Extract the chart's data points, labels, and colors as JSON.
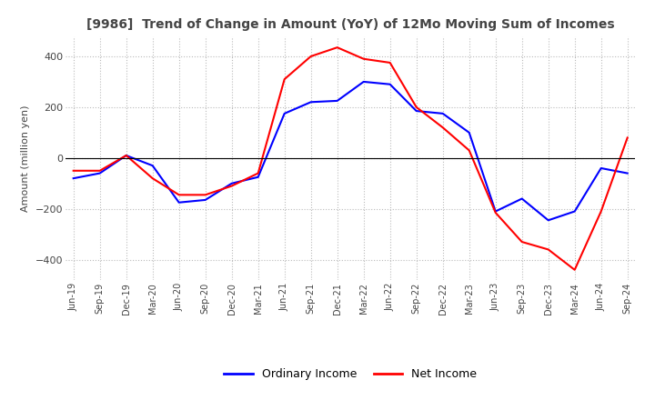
{
  "title": "[9986]  Trend of Change in Amount (YoY) of 12Mo Moving Sum of Incomes",
  "ylabel": "Amount (million yen)",
  "x_labels": [
    "Jun-19",
    "Sep-19",
    "Dec-19",
    "Mar-20",
    "Jun-20",
    "Sep-20",
    "Dec-20",
    "Mar-21",
    "Jun-21",
    "Sep-21",
    "Dec-21",
    "Mar-22",
    "Jun-22",
    "Sep-22",
    "Dec-22",
    "Mar-23",
    "Jun-23",
    "Sep-23",
    "Dec-23",
    "Mar-24",
    "Jun-24",
    "Sep-24"
  ],
  "ordinary_income": [
    -80,
    -60,
    10,
    -30,
    -175,
    -165,
    -100,
    -75,
    175,
    220,
    225,
    300,
    290,
    185,
    175,
    100,
    -210,
    -160,
    -245,
    -210,
    -40,
    -60
  ],
  "net_income": [
    -50,
    -50,
    10,
    -80,
    -145,
    -145,
    -110,
    -60,
    310,
    400,
    435,
    390,
    375,
    200,
    120,
    30,
    -215,
    -330,
    -360,
    -440,
    -210,
    80
  ],
  "ylim": [
    -480,
    480
  ],
  "yticks": [
    -400,
    -200,
    0,
    200,
    400
  ],
  "ordinary_color": "#0000FF",
  "net_color": "#FF0000",
  "background_color": "#FFFFFF",
  "grid_color": "#BBBBBB",
  "title_color": "#444444",
  "legend_ordinary": "Ordinary Income",
  "legend_net": "Net Income"
}
